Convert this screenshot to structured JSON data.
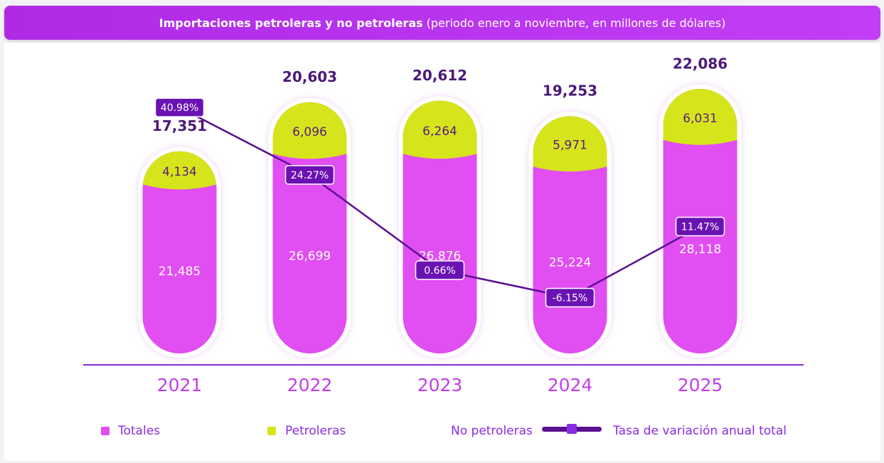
{
  "chart_data": {
    "type": "bar",
    "title": "Importaciones petroleras y no petroleras",
    "subtitle": "(periodo enero a noviembre, en millones de dólares)",
    "categories": [
      "2021",
      "2022",
      "2023",
      "2024",
      "2025"
    ],
    "ylim": [
      0,
      30000
    ],
    "y2lim": [
      -20,
      50
    ],
    "legend": "bottom",
    "series": [
      {
        "name": "Totales",
        "color": "#e14ef2",
        "values": [
          21485,
          26699,
          26876,
          25224,
          28118
        ],
        "value_labels": [
          "21,485",
          "26,699",
          "26,876",
          "25,224",
          "28,118"
        ]
      },
      {
        "name": "Petroleras",
        "color": "#d6e51b",
        "values": [
          4134,
          6096,
          6264,
          5971,
          6031
        ],
        "value_labels": [
          "4,134",
          "6,096",
          "6,264",
          "5,971",
          "6,031"
        ]
      },
      {
        "name": "No petroleras",
        "color": "#4b1a78",
        "values": [
          17351,
          20603,
          20612,
          19253,
          22086
        ],
        "value_labels": [
          "17,351",
          "20,603",
          "20,612",
          "19,253",
          "22,086"
        ]
      },
      {
        "name": "Tasa de variación anual total",
        "color": "#5b0f91",
        "axis": "y2",
        "type": "line",
        "values": [
          40.98,
          24.27,
          0.66,
          -6.15,
          11.47
        ],
        "value_labels": [
          "40.98%",
          "24.27%",
          "0.66%",
          "-6.15%",
          "11.47%"
        ]
      }
    ]
  }
}
